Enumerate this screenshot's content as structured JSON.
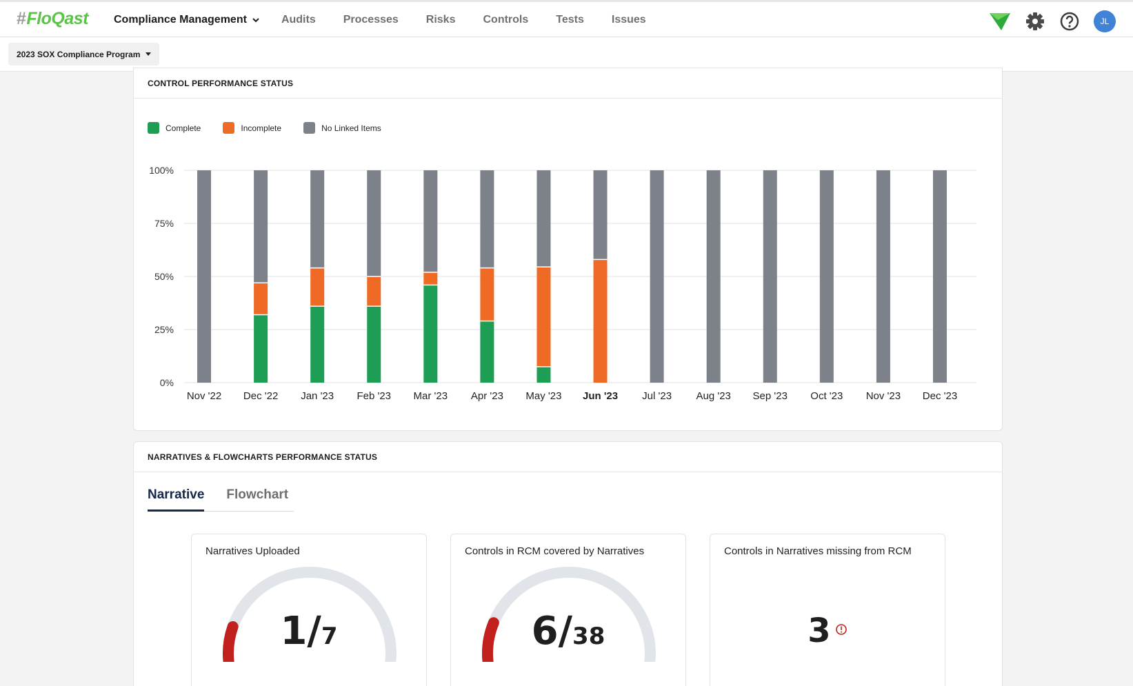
{
  "header": {
    "logo": "FloQast",
    "primary_menu": "Compliance Management",
    "nav": [
      "Audits",
      "Processes",
      "Risks",
      "Controls",
      "Tests",
      "Issues"
    ],
    "avatar_initials": "JL"
  },
  "program": {
    "selected": "2023 SOX Compliance Program"
  },
  "control_performance": {
    "title": "CONTROL PERFORMANCE STATUS",
    "chart_data": {
      "type": "bar",
      "stacked": true,
      "categories": [
        "Nov '22",
        "Dec '22",
        "Jan '23",
        "Feb '23",
        "Mar '23",
        "Apr '23",
        "May '23",
        "Jun '23",
        "Jul '23",
        "Aug '23",
        "Sep '23",
        "Oct '23",
        "Nov '23",
        "Dec '23"
      ],
      "highlighted_category": "Jun '23",
      "series": [
        {
          "name": "Complete",
          "color": "#1e9e55",
          "values": [
            0,
            32,
            36,
            36,
            46,
            29,
            7.5,
            0,
            0,
            0,
            0,
            0,
            0,
            0
          ]
        },
        {
          "name": "Incomplete",
          "color": "#ef6a24",
          "values": [
            0,
            15,
            18,
            14,
            6,
            25,
            47,
            58,
            0,
            0,
            0,
            0,
            0,
            0
          ]
        },
        {
          "name": "No Linked Items",
          "color": "#7d828a",
          "values": [
            100,
            53,
            46,
            50,
            48,
            46,
            45.5,
            42,
            100,
            100,
            100,
            100,
            100,
            100
          ]
        }
      ],
      "yticks": [
        "0%",
        "25%",
        "50%",
        "75%",
        "100%"
      ],
      "ylim": [
        0,
        100
      ],
      "legend_position": "top-left",
      "grid": true
    }
  },
  "narratives": {
    "title": "NARRATIVES & FLOWCHARTS PERFORMANCE STATUS",
    "tabs": [
      "Narrative",
      "Flowchart"
    ],
    "active_tab": "Narrative",
    "stats": [
      {
        "title": "Narratives Uploaded",
        "value": "1",
        "total": "7",
        "fraction": 0.143,
        "color": "#c2201c"
      },
      {
        "title": "Controls in RCM covered by Narratives",
        "value": "6",
        "total": "38",
        "fraction": 0.158,
        "color": "#c2201c"
      },
      {
        "title": "Controls in Narratives missing from RCM",
        "value": "3"
      }
    ]
  }
}
